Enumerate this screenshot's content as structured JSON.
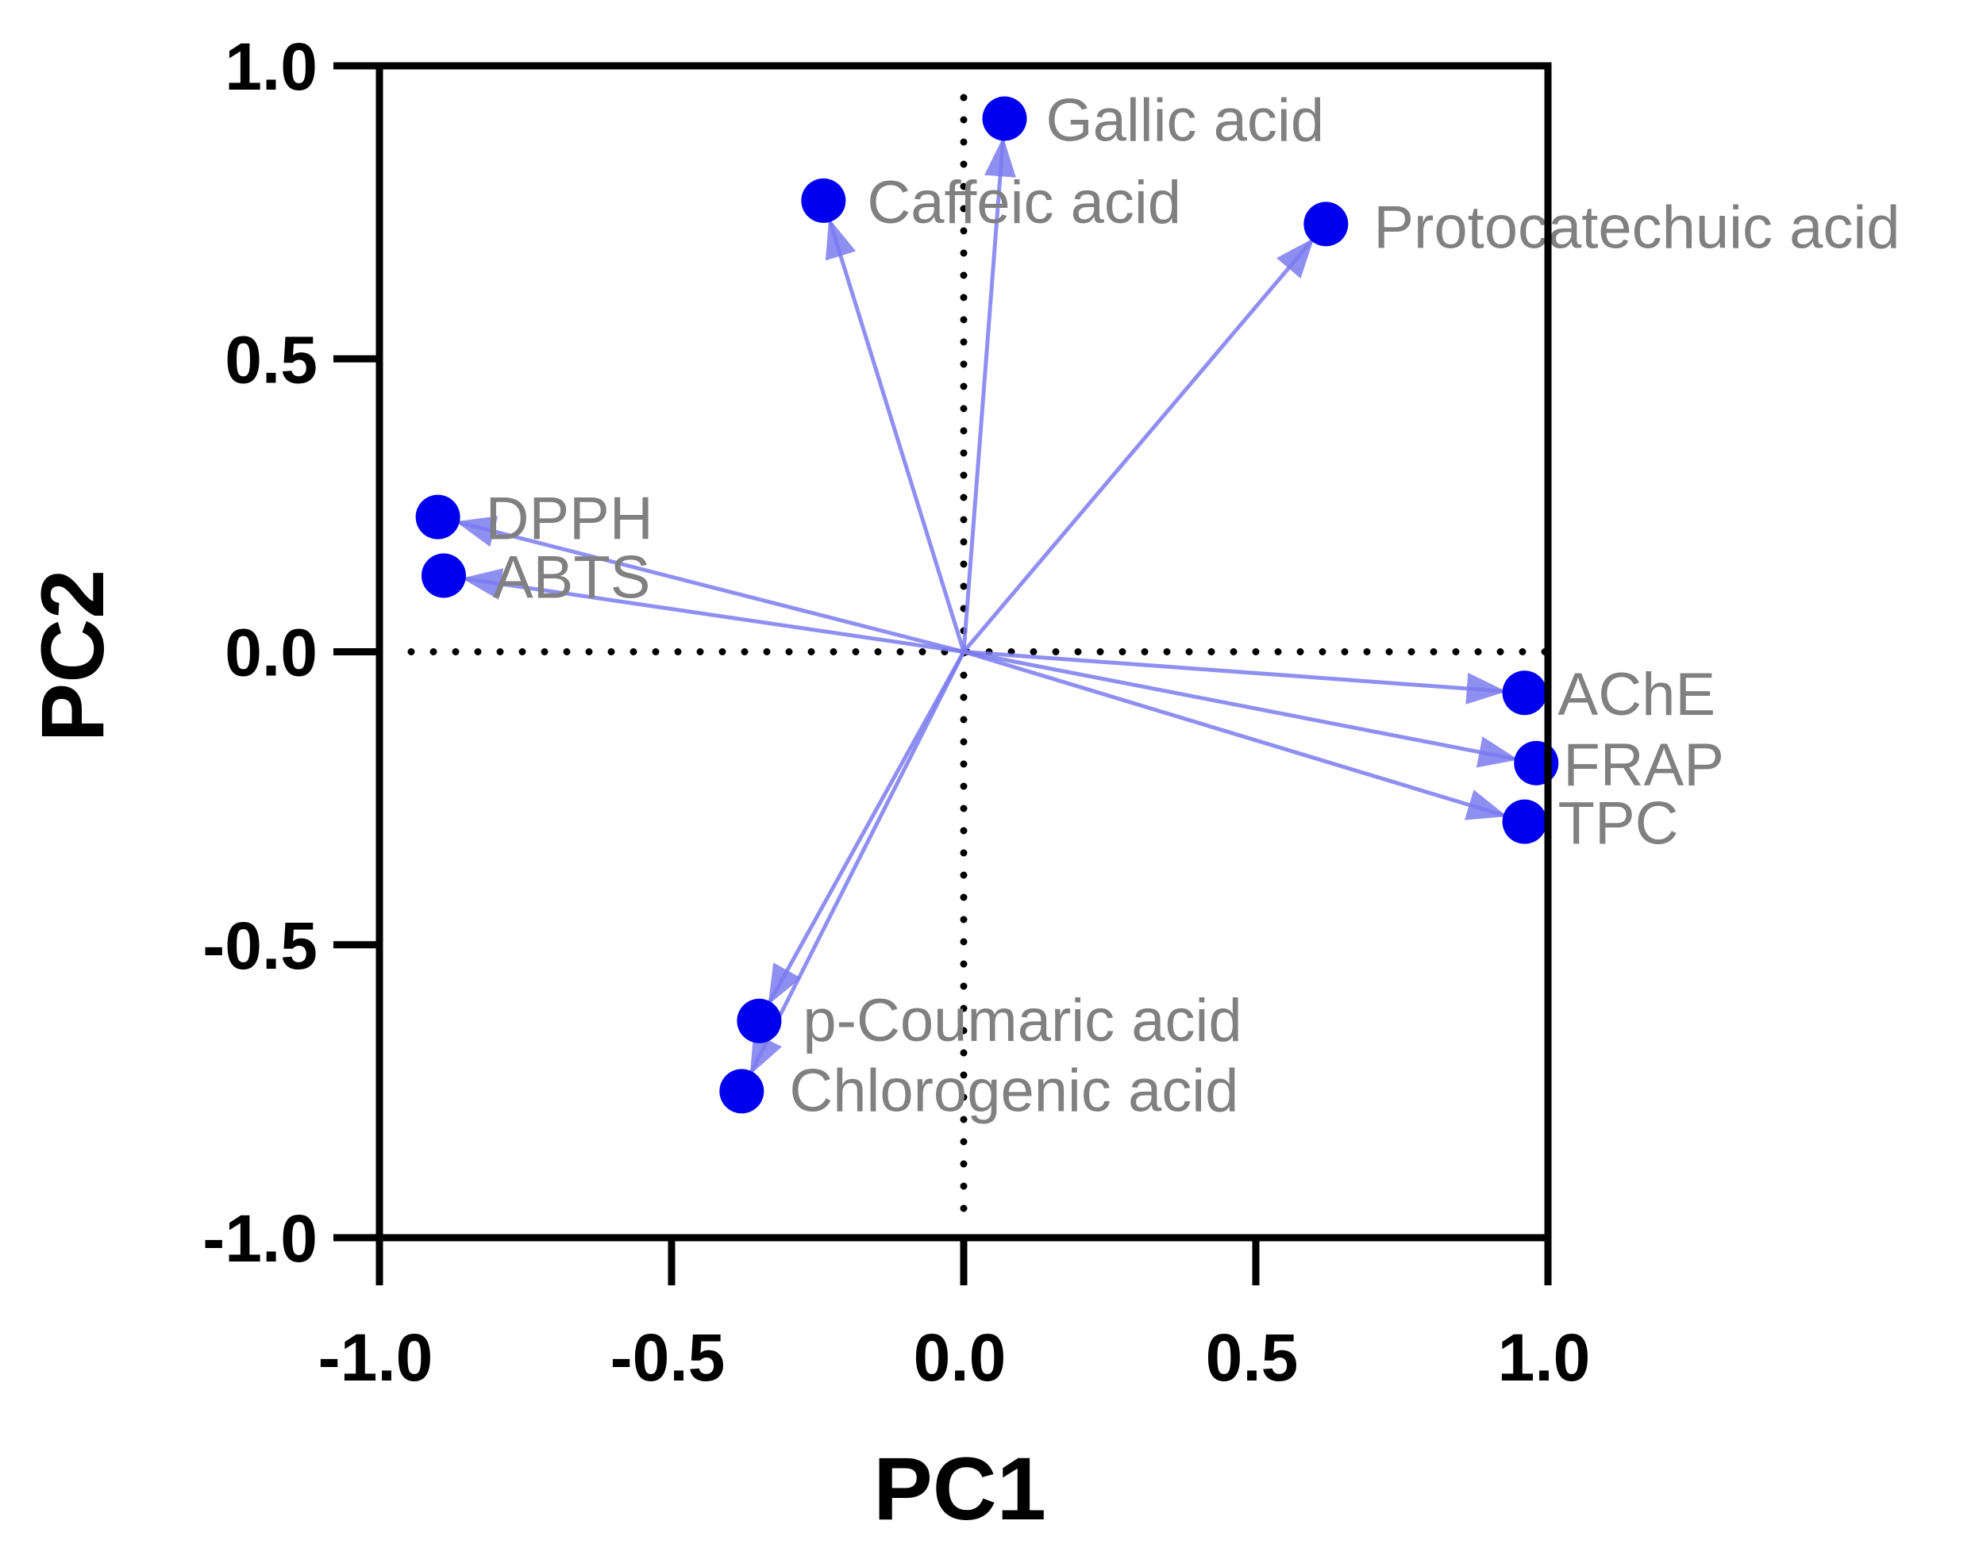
{
  "chart_data": {
    "type": "scatter",
    "title": "",
    "xlabel": "PC1",
    "ylabel": "PC2",
    "xlim": [
      -1.0,
      1.0
    ],
    "ylim": [
      -1.0,
      1.0
    ],
    "x_ticks": [
      "-1.0",
      "-0.5",
      "0.0",
      "0.5",
      "1.0"
    ],
    "y_ticks": [
      "1.0",
      "0.5",
      "0.0",
      "-0.5",
      "-1.0"
    ],
    "grid": false,
    "zero_lines": true,
    "point_color": "#0000ee",
    "arrow_color": "#7b7bf0",
    "label_color": "#808080",
    "points": [
      {
        "label": "Gallic acid",
        "x": 0.07,
        "y": 0.91
      },
      {
        "label": "Caffeic acid",
        "x": -0.24,
        "y": 0.77
      },
      {
        "label": "Protocatechuic acid",
        "x": 0.62,
        "y": 0.73
      },
      {
        "label": "DPPH",
        "x": -0.9,
        "y": 0.23
      },
      {
        "label": "ABTS",
        "x": -0.89,
        "y": 0.13
      },
      {
        "label": "AChE",
        "x": 0.96,
        "y": -0.07
      },
      {
        "label": "FRAP",
        "x": 0.98,
        "y": -0.19
      },
      {
        "label": "TPC",
        "x": 0.96,
        "y": -0.29
      },
      {
        "label": "p-Coumaric acid",
        "x": -0.35,
        "y": -0.63
      },
      {
        "label": "Chlorogenic acid",
        "x": -0.38,
        "y": -0.75
      }
    ]
  }
}
